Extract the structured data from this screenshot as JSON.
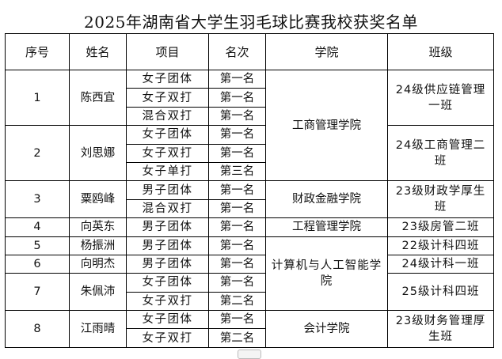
{
  "document": {
    "title": "2025年湖南省大学生羽毛球比赛我校获奖名单",
    "headers": [
      "序号",
      "姓名",
      "项目",
      "名次",
      "学院",
      "班级"
    ],
    "entries": [
      {
        "seq": "1",
        "name": "陈西宜",
        "class": "24级供应链管理一班",
        "events": [
          {
            "event": "女子团体",
            "rank": "第一名"
          },
          {
            "event": "女子双打",
            "rank": "第一名"
          },
          {
            "event": "混合双打",
            "rank": "第一名"
          }
        ]
      },
      {
        "seq": "2",
        "name": "刘思娜",
        "class": "24级工商管理二班",
        "events": [
          {
            "event": "女子团体",
            "rank": "第一名"
          },
          {
            "event": "女子双打",
            "rank": "第一名"
          },
          {
            "event": "女子单打",
            "rank": "第三名"
          }
        ]
      },
      {
        "seq": "3",
        "name": "粟鸥峰",
        "class": "23级财政学厚生班",
        "events": [
          {
            "event": "男子团体",
            "rank": "第一名"
          },
          {
            "event": "混合双打",
            "rank": "第一名"
          }
        ]
      },
      {
        "seq": "4",
        "name": "向英东",
        "class": "23级房管二班",
        "events": [
          {
            "event": "男子团体",
            "rank": "第一名"
          }
        ]
      },
      {
        "seq": "5",
        "name": "杨振洲",
        "class": "22级计科四班",
        "events": [
          {
            "event": "男子团体",
            "rank": "第一名"
          }
        ]
      },
      {
        "seq": "6",
        "name": "向明杰",
        "class": "24级计科一班",
        "events": [
          {
            "event": "男子团体",
            "rank": "第一名"
          }
        ]
      },
      {
        "seq": "7",
        "name": "朱佩沛",
        "class": "25级计科四班",
        "events": [
          {
            "event": "女子团体",
            "rank": "第一名"
          },
          {
            "event": "女子双打",
            "rank": "第二名"
          }
        ]
      },
      {
        "seq": "8",
        "name": "江雨晴",
        "class": "23级财务管理厚生班",
        "events": [
          {
            "event": "女子团体",
            "rank": "第一名"
          },
          {
            "event": "女子双打",
            "rank": "第二名"
          }
        ]
      }
    ],
    "colleges": [
      "工商管理学院",
      "财政金融学院",
      "工程管理学院",
      "计算机与人工智能学院",
      "会计学院"
    ]
  }
}
